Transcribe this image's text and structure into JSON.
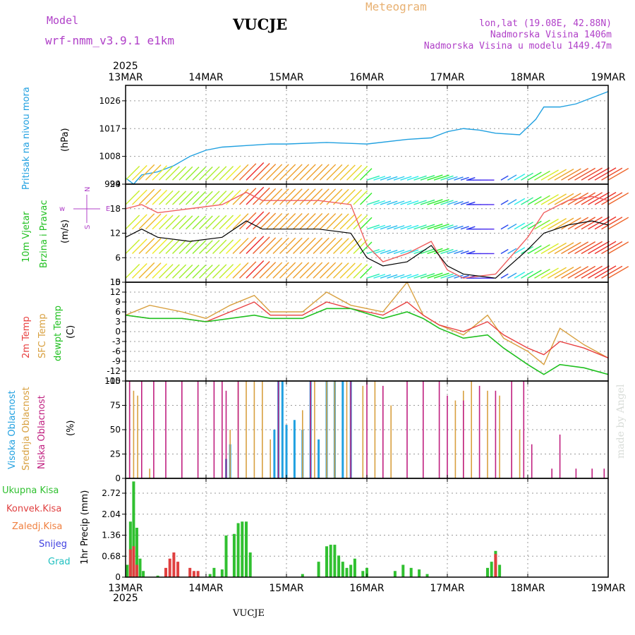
{
  "header": {
    "model_label": "Model",
    "model_version": "wrf-nmm_v3.9.1 e1km",
    "station": "VUCJE",
    "meteogram": "Meteogram",
    "lonlat": "lon,lat (19.08E, 42.88N)",
    "elevation": "Nadmorska Visina 1406m",
    "model_elevation": "Nadmorska Visina u modelu 1449.47m"
  },
  "footer": {
    "station": "VUCJE",
    "credit": "made by Angel"
  },
  "colors": {
    "pressure": "#20a0e0",
    "temp2m": "#e84040",
    "sfc": "#d8a040",
    "dewpt": "#20c020",
    "high_cloud": "#20a0e0",
    "mid_cloud": "#d8a040",
    "low_cloud": "#c02080",
    "total_precip": "#30c030",
    "conv_precip": "#e04040"
  },
  "time_axis": {
    "year": "2025",
    "labels": [
      "13MAR",
      "14MAR",
      "15MAR",
      "16MAR",
      "17MAR",
      "18MAR",
      "19MAR"
    ]
  },
  "panels": {
    "pressure": {
      "label1": "Pritisak na nivou mora",
      "unit": "(hPa)"
    },
    "wind": {
      "label1": "10m Vjetar",
      "label2": "Brzina i Pravac",
      "unit": "(m/s)",
      "compass_w": "w",
      "compass_e": "E",
      "compass_n": "N",
      "compass_s": "S"
    },
    "temp": {
      "label1": "2m Temp",
      "label2": "SFC Temp",
      "label3": "dewpt Temp",
      "unit": "(C)"
    },
    "cloud": {
      "label1": "Visoka Oblacnost",
      "label2": "Srednja Oblacnost",
      "label3": "Niska Oblacnost",
      "unit": "(%)"
    },
    "precip": {
      "label1": "Ukupna Kisa",
      "label2": "Konvek.Kisa",
      "label3": "Zaledj.Kisa",
      "label4": "Snijeg",
      "label5": "Grad",
      "unit": "1hr Precip (mm)"
    }
  },
  "chart_data": [
    {
      "type": "line",
      "title": "Pritisak na nivou mora",
      "ylabel": "(hPa)",
      "ylim": [
        999,
        1031
      ],
      "yticks": [
        "999",
        "1008",
        "1017",
        "1026"
      ],
      "x_range_days": [
        0,
        6
      ],
      "series": [
        {
          "name": "Pritisak na nivou mora",
          "x": [
            0,
            0.1,
            0.2,
            0.4,
            0.6,
            0.8,
            1.0,
            1.2,
            1.5,
            1.8,
            2.0,
            2.5,
            3.0,
            3.5,
            3.8,
            4.0,
            4.2,
            4.4,
            4.6,
            4.9,
            5.1,
            5.2,
            5.4,
            5.6,
            5.8,
            6.0
          ],
          "values": [
            1001,
            999,
            1002,
            1003,
            1005,
            1008,
            1010,
            1011,
            1011.5,
            1012,
            1012,
            1012.5,
            1012,
            1013.5,
            1014,
            1016,
            1017,
            1016.5,
            1015.5,
            1015,
            1020,
            1024,
            1024,
            1025,
            1027,
            1029
          ]
        }
      ]
    },
    {
      "type": "line",
      "title": "10m Vjetar",
      "ylabel": "(m/s)",
      "ylim": [
        0,
        24
      ],
      "yticks": [
        "0",
        "6",
        "12",
        "18",
        "24"
      ],
      "x_range_days": [
        0,
        6
      ],
      "series": [
        {
          "name": "Brzina",
          "x": [
            0,
            0.2,
            0.4,
            0.8,
            1.2,
            1.5,
            1.7,
            2.0,
            2.4,
            2.8,
            3.0,
            3.2,
            3.5,
            3.8,
            4.0,
            4.2,
            4.6,
            5.0,
            5.2,
            5.5,
            5.8,
            6.0
          ],
          "values": [
            11,
            13,
            11,
            10,
            11,
            15,
            13,
            13,
            13,
            12,
            6,
            4,
            5,
            9,
            4,
            2,
            1,
            8,
            12,
            14,
            15,
            14
          ]
        },
        {
          "name": "Udari",
          "x": [
            0,
            0.2,
            0.4,
            0.8,
            1.2,
            1.5,
            1.7,
            2.0,
            2.4,
            2.8,
            3.0,
            3.2,
            3.5,
            3.8,
            4.0,
            4.2,
            4.6,
            5.0,
            5.2,
            5.5,
            5.8,
            6.0
          ],
          "values": [
            18,
            19,
            17,
            18,
            19,
            22,
            20,
            20,
            20,
            19,
            9,
            5,
            7,
            10,
            3,
            1,
            2,
            11,
            17,
            20,
            21,
            20
          ]
        }
      ]
    },
    {
      "type": "line",
      "title": "Temp",
      "ylabel": "(C)",
      "ylim": [
        -15,
        15
      ],
      "yticks": [
        "-15",
        "-12",
        "-9",
        "-6",
        "-3",
        "0",
        "3",
        "6",
        "9",
        "12",
        "15"
      ],
      "x_range_days": [
        0,
        6
      ],
      "series": [
        {
          "name": "2m Temp",
          "x": [
            0,
            0.3,
            0.7,
            1.0,
            1.3,
            1.6,
            1.8,
            2.2,
            2.5,
            2.8,
            3.2,
            3.5,
            3.7,
            3.9,
            4.2,
            4.5,
            4.7,
            5.0,
            5.2,
            5.4,
            5.7,
            6.0
          ],
          "values": [
            5,
            4,
            4,
            3,
            6,
            9,
            5,
            5,
            9,
            7,
            5,
            9,
            5,
            2,
            0,
            3,
            -1,
            -5,
            -7,
            -3,
            -5,
            -8
          ]
        },
        {
          "name": "SFC Temp",
          "x": [
            0,
            0.3,
            0.7,
            1.0,
            1.3,
            1.6,
            1.8,
            2.2,
            2.5,
            2.8,
            3.2,
            3.5,
            3.7,
            3.9,
            4.2,
            4.5,
            4.7,
            5.0,
            5.2,
            5.4,
            5.7,
            6.0
          ],
          "values": [
            5,
            8,
            6,
            4,
            8,
            11,
            6,
            6,
            12,
            8,
            6,
            15,
            5,
            2,
            -1,
            5,
            -2,
            -6,
            -10,
            1,
            -4,
            -8
          ]
        },
        {
          "name": "dewpt Temp",
          "x": [
            0,
            0.3,
            0.7,
            1.0,
            1.3,
            1.6,
            1.8,
            2.2,
            2.5,
            2.8,
            3.2,
            3.5,
            3.7,
            3.9,
            4.2,
            4.5,
            4.7,
            5.0,
            5.2,
            5.4,
            5.7,
            6.0
          ],
          "values": [
            5,
            4,
            4,
            3,
            4,
            5,
            4,
            4,
            7,
            7,
            4,
            6,
            4,
            1,
            -2,
            -1,
            -5,
            -10,
            -13,
            -10,
            -11,
            -13
          ]
        }
      ]
    },
    {
      "type": "bar",
      "title": "Oblacnost",
      "ylabel": "(%)",
      "ylim": [
        0,
        100
      ],
      "yticks": [
        "0",
        "25",
        "50",
        "75",
        "100"
      ],
      "x_range_days": [
        0,
        6
      ],
      "series": [
        {
          "name": "Visoka Oblacnost",
          "x": [
            1.25,
            1.3,
            1.85,
            1.9,
            1.95,
            2.0,
            2.1,
            2.2,
            2.3,
            2.4,
            2.5,
            2.6,
            2.7,
            2.8
          ],
          "values": [
            20,
            35,
            50,
            100,
            100,
            55,
            60,
            50,
            100,
            40,
            100,
            100,
            100,
            100
          ]
        },
        {
          "name": "Srednja Oblacnost",
          "x": [
            0.05,
            0.1,
            0.15,
            0.3,
            1.3,
            1.4,
            1.5,
            1.6,
            1.7,
            1.8,
            2.2,
            2.35,
            2.5,
            2.6,
            2.75,
            2.95,
            3.1,
            3.3,
            4.1,
            4.2,
            4.3,
            4.5,
            4.65,
            4.8,
            4.9
          ],
          "values": [
            100,
            90,
            85,
            10,
            50,
            100,
            100,
            100,
            100,
            40,
            70,
            100,
            100,
            100,
            100,
            95,
            100,
            75,
            80,
            90,
            100,
            90,
            85,
            70,
            50
          ]
        },
        {
          "name": "Niska Oblacnost",
          "x": [
            0.05,
            0.2,
            0.35,
            0.5,
            0.7,
            0.9,
            1.1,
            1.2,
            1.25,
            1.4,
            1.9,
            2.3,
            2.8,
            3.0,
            3.2,
            3.5,
            3.7,
            3.9,
            4.0,
            4.2,
            4.4,
            4.6,
            4.8,
            4.95,
            5.05,
            5.3,
            5.4,
            5.6,
            5.8,
            5.95
          ],
          "values": [
            100,
            100,
            100,
            100,
            100,
            100,
            100,
            100,
            90,
            100,
            100,
            100,
            100,
            100,
            95,
            100,
            100,
            100,
            85,
            80,
            95,
            90,
            100,
            100,
            35,
            10,
            45,
            10,
            10,
            10
          ]
        }
      ]
    },
    {
      "type": "bar",
      "title": "Padavine",
      "ylabel": "1hr Precip (mm)",
      "ylim": [
        0,
        3.2
      ],
      "yticks": [
        "0",
        "0.68",
        "1.36",
        "2.04",
        "2.72"
      ],
      "x_range_days": [
        0,
        6
      ],
      "series": [
        {
          "name": "Ukupna Kisa",
          "x": [
            0.02,
            0.06,
            0.1,
            0.14,
            0.18,
            0.22,
            0.4,
            0.65,
            1.05,
            1.1,
            1.2,
            1.25,
            1.35,
            1.4,
            1.45,
            1.5,
            1.55,
            2.2,
            2.4,
            2.5,
            2.55,
            2.6,
            2.65,
            2.7,
            2.75,
            2.8,
            2.85,
            2.95,
            3.0,
            3.35,
            3.45,
            3.55,
            3.65,
            3.75,
            4.5,
            4.55,
            4.6,
            4.65
          ],
          "values": [
            0.4,
            1.8,
            3.1,
            1.6,
            0.6,
            0.2,
            0.05,
            0.05,
            0.1,
            0.3,
            0.25,
            1.35,
            1.4,
            1.75,
            1.8,
            1.8,
            0.8,
            0.1,
            0.5,
            1.0,
            1.05,
            1.05,
            0.7,
            0.5,
            0.3,
            0.4,
            0.6,
            0.2,
            0.3,
            0.2,
            0.4,
            0.3,
            0.25,
            0.1,
            0.3,
            0.5,
            0.85,
            0.4
          ]
        },
        {
          "name": "Konvek.Kisa",
          "x": [
            0.06,
            0.1,
            0.14,
            0.5,
            0.55,
            0.6,
            0.65,
            0.8,
            0.85,
            0.9,
            4.6
          ],
          "values": [
            0.9,
            1.0,
            0.4,
            0.3,
            0.6,
            0.8,
            0.5,
            0.3,
            0.2,
            0.2,
            0.75
          ]
        }
      ]
    }
  ]
}
